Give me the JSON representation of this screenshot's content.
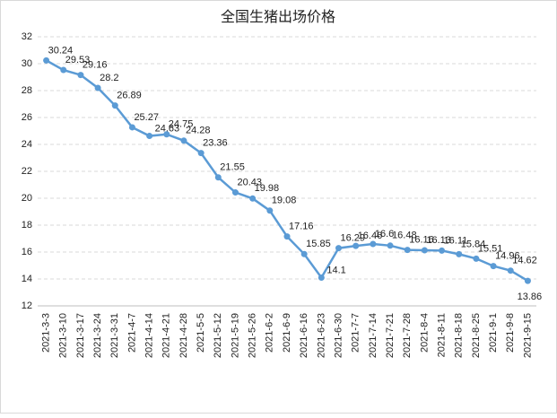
{
  "chart_data": {
    "type": "line",
    "title": "全国生猪出场价格",
    "categories": [
      "2021-3-3",
      "2021-3-10",
      "2021-3-17",
      "2021-3-24",
      "2021-3-31",
      "2021-4-7",
      "2021-4-14",
      "2021-4-21",
      "2021-4-28",
      "2021-5-5",
      "2021-5-12",
      "2021-5-19",
      "2021-5-26",
      "2021-6-2",
      "2021-6-9",
      "2021-6-16",
      "2021-6-23",
      "2021-6-30",
      "2021-7-7",
      "2021-7-14",
      "2021-7-21",
      "2021-7-28",
      "2021-8-4",
      "2021-8-11",
      "2021-8-18",
      "2021-8-25",
      "2021-9-1",
      "2021-9-8",
      "2021-9-15"
    ],
    "values": [
      30.24,
      29.53,
      29.16,
      28.2,
      26.89,
      25.27,
      24.63,
      24.75,
      24.28,
      23.36,
      21.55,
      20.43,
      19.98,
      19.08,
      17.16,
      15.85,
      14.1,
      16.29,
      16.46,
      16.6,
      16.48,
      16.16,
      16.13,
      16.11,
      15.84,
      15.51,
      14.96,
      14.62,
      13.86
    ],
    "color": "#5b9bd5",
    "ylim": [
      12,
      32
    ],
    "yticks": [
      12,
      14,
      16,
      18,
      20,
      22,
      24,
      26,
      28,
      30,
      32
    ],
    "grid": true
  }
}
